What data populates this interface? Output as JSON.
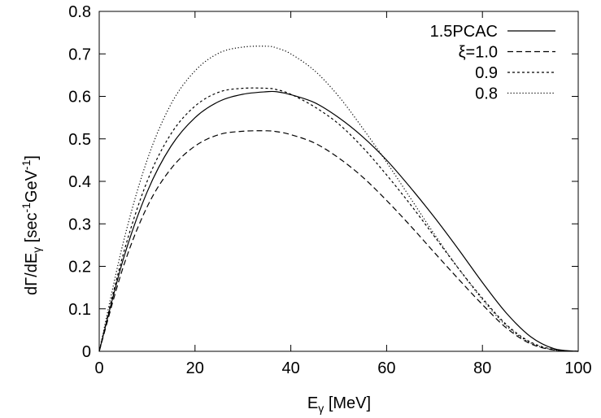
{
  "chart_data": {
    "type": "line",
    "title": "",
    "xlabel": "E_γ [MeV]",
    "ylabel": "dΓ/dE_γ [sec^-1 GeV^-1]",
    "xlim": [
      0,
      100
    ],
    "ylim": [
      0,
      0.8
    ],
    "x_ticks": [
      "0",
      "20",
      "40",
      "60",
      "80",
      "100"
    ],
    "y_ticks": [
      "0",
      "0.1",
      "0.2",
      "0.3",
      "0.4",
      "0.5",
      "0.6",
      "0.7",
      "0.8"
    ],
    "grid": false,
    "legend_position": "top-right",
    "x": [
      0,
      5,
      10,
      15,
      20,
      25,
      30,
      35,
      37,
      40,
      45,
      50,
      55,
      60,
      65,
      70,
      75,
      80,
      85,
      90,
      95,
      100
    ],
    "series": [
      {
        "name": "1.5PCAC",
        "style": "solid",
        "values": [
          0,
          0.216,
          0.375,
          0.483,
          0.55,
          0.588,
          0.605,
          0.611,
          0.611,
          0.604,
          0.585,
          0.55,
          0.505,
          0.45,
          0.385,
          0.315,
          0.24,
          0.162,
          0.09,
          0.035,
          0.006,
          0
        ]
      },
      {
        "name": "ξ=1.0",
        "style": "dashed",
        "values": [
          0,
          0.198,
          0.34,
          0.43,
          0.483,
          0.51,
          0.518,
          0.519,
          0.517,
          0.51,
          0.49,
          0.455,
          0.41,
          0.355,
          0.295,
          0.232,
          0.17,
          0.11,
          0.055,
          0.018,
          0.003,
          0
        ]
      },
      {
        "name": "0.9",
        "style": "dashed-fine",
        "values": [
          0,
          0.228,
          0.4,
          0.512,
          0.577,
          0.61,
          0.619,
          0.619,
          0.616,
          0.605,
          0.575,
          0.535,
          0.48,
          0.415,
          0.345,
          0.27,
          0.195,
          0.125,
          0.063,
          0.022,
          0.004,
          0
        ]
      },
      {
        "name": "0.8",
        "style": "dotted",
        "values": [
          0,
          0.255,
          0.45,
          0.582,
          0.66,
          0.702,
          0.716,
          0.718,
          0.714,
          0.7,
          0.66,
          0.6,
          0.525,
          0.445,
          0.36,
          0.275,
          0.195,
          0.122,
          0.06,
          0.02,
          0.003,
          0
        ]
      }
    ]
  }
}
